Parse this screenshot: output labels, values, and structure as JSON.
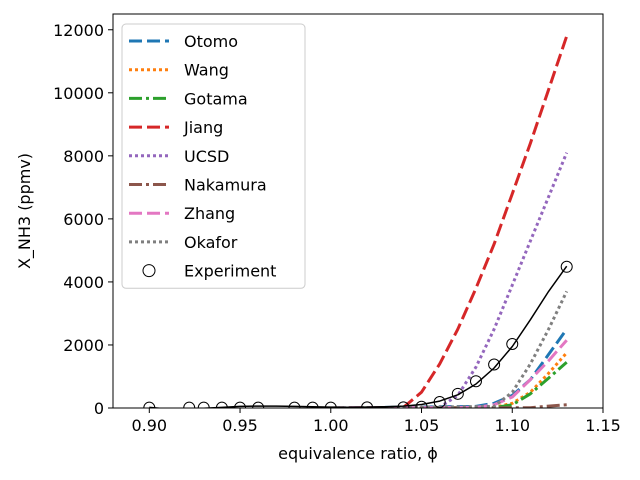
{
  "chart_data": {
    "type": "line",
    "xlabel": "equivalence ratio, ϕ",
    "ylabel": "X_NH3 (ppmv)",
    "xlim": [
      0.88,
      1.15
    ],
    "ylim": [
      0,
      12500
    ],
    "x_ticks": [
      "0.90",
      "0.95",
      "1.00",
      "1.05",
      "1.10",
      "1.15"
    ],
    "y_ticks": [
      "0",
      "2000",
      "4000",
      "6000",
      "8000",
      "10000",
      "12000"
    ],
    "legend_position": "upper-left",
    "grid": false,
    "series": [
      {
        "name": "Otomo",
        "style": "dashed",
        "color": "#1f77b4",
        "x": [
          1.0,
          1.08,
          1.09,
          1.1,
          1.11,
          1.12,
          1.13
        ],
        "y": [
          0,
          50,
          150,
          400,
          900,
          1700,
          2500
        ]
      },
      {
        "name": "Wang",
        "style": "dotted",
        "color": "#ff7f0e",
        "x": [
          1.0,
          1.09,
          1.1,
          1.11,
          1.12,
          1.13
        ],
        "y": [
          0,
          20,
          150,
          500,
          1100,
          1750
        ]
      },
      {
        "name": "Gotama",
        "style": "dashdot",
        "color": "#2ca02c",
        "x": [
          1.0,
          1.09,
          1.1,
          1.11,
          1.12,
          1.13
        ],
        "y": [
          0,
          10,
          100,
          450,
          950,
          1450
        ]
      },
      {
        "name": "Jiang",
        "style": "dashed",
        "color": "#d62728",
        "x": [
          1.0,
          1.04,
          1.05,
          1.06,
          1.07,
          1.08,
          1.09,
          1.1,
          1.11,
          1.12,
          1.13
        ],
        "y": [
          0,
          20,
          500,
          1400,
          2500,
          3800,
          5200,
          6800,
          8400,
          10100,
          11800
        ]
      },
      {
        "name": "UCSD",
        "style": "dotted",
        "color": "#9467bd",
        "x": [
          1.0,
          1.06,
          1.07,
          1.08,
          1.09,
          1.1,
          1.11,
          1.12,
          1.13
        ],
        "y": [
          0,
          30,
          400,
          1300,
          2500,
          3900,
          5300,
          6700,
          8100
        ]
      },
      {
        "name": "Nakamura",
        "style": "dashdot",
        "color": "#8c564b",
        "x": [
          1.0,
          1.11,
          1.12,
          1.13
        ],
        "y": [
          0,
          10,
          60,
          100
        ]
      },
      {
        "name": "Zhang",
        "style": "dashed",
        "color": "#e377c2",
        "x": [
          1.0,
          1.08,
          1.09,
          1.1,
          1.11,
          1.12,
          1.13
        ],
        "y": [
          0,
          20,
          100,
          350,
          900,
          1500,
          2150
        ]
      },
      {
        "name": "Okafor",
        "style": "dotted",
        "color": "#7f7f7f",
        "x": [
          1.0,
          1.09,
          1.1,
          1.11,
          1.12,
          1.13
        ],
        "y": [
          0,
          50,
          500,
          1400,
          2500,
          3700
        ]
      },
      {
        "name": "fit",
        "style": "solid",
        "color": "#000000",
        "in_legend": false,
        "x": [
          0.9,
          0.91,
          0.92,
          0.93,
          0.94,
          0.95,
          0.96,
          0.97,
          0.98,
          0.99,
          1.0,
          1.01,
          1.02,
          1.03,
          1.04,
          1.05,
          1.06,
          1.07,
          1.08,
          1.09,
          1.1,
          1.11,
          1.12,
          1.13
        ],
        "y": [
          20,
          -30,
          -40,
          -10,
          20,
          50,
          60,
          60,
          50,
          40,
          30,
          25,
          30,
          40,
          60,
          110,
          220,
          420,
          760,
          1270,
          1950,
          2800,
          3700,
          4500
        ]
      },
      {
        "name": "Experiment",
        "style": "markers",
        "color": "#000000",
        "x": [
          0.9,
          0.922,
          0.93,
          0.94,
          0.95,
          0.96,
          0.98,
          0.99,
          1.0,
          1.02,
          1.04,
          1.05,
          1.06,
          1.07,
          1.08,
          1.09,
          1.1,
          1.13
        ],
        "y": [
          10,
          10,
          10,
          10,
          10,
          10,
          10,
          10,
          10,
          20,
          20,
          40,
          190,
          450,
          850,
          1380,
          2030,
          4480
        ]
      }
    ]
  }
}
